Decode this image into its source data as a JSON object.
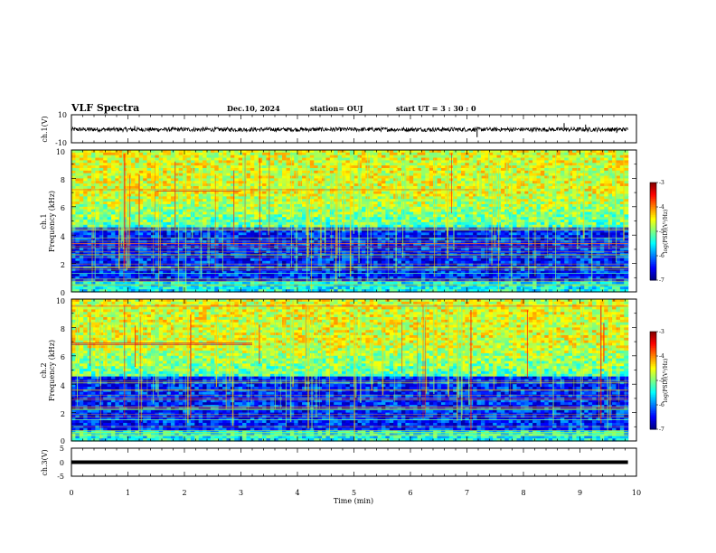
{
  "header": {
    "title": "VLF Spectra",
    "date": "Dec.10, 2024",
    "station": "station= OUJ",
    "start_ut": "start  UT =   3 : 30 : 0"
  },
  "chart_data": [
    {
      "type": "line",
      "title": "VLF Spectra",
      "ylabel": "ch.1(V)",
      "ylim": [
        -10,
        10
      ],
      "yticks": [
        "10",
        "-10"
      ],
      "x_range_min": [
        0,
        10
      ],
      "data_end_min": 9.85,
      "baseline_V": -0.5,
      "noise_amplitude_V": 1.5
    },
    {
      "type": "heatmap",
      "ylabel_line1": "ch.1",
      "ylabel_line2": "Frequency  (kHz)",
      "ylim": [
        0,
        10
      ],
      "yticks": [
        "0",
        "2",
        "4",
        "6",
        "8",
        "10"
      ],
      "colorbar_label": "log(PSD)(V²/Hz)",
      "colorbar_ticks": [
        "-3",
        "-4",
        "-5",
        "-6",
        "-7"
      ],
      "colorbar_range": [
        -7,
        -3
      ]
    },
    {
      "type": "heatmap",
      "ylabel_line1": "ch.2",
      "ylabel_line2": "Frequency  (kHz)",
      "ylim": [
        0,
        10
      ],
      "yticks": [
        "0",
        "2",
        "4",
        "6",
        "8",
        "10"
      ],
      "colorbar_label": "log(PSD)(V²/Hz)",
      "colorbar_ticks": [
        "-3",
        "-4",
        "-5",
        "-6",
        "-7"
      ],
      "colorbar_range": [
        -7,
        -3
      ]
    },
    {
      "type": "line",
      "ylabel": "ch.3(V)",
      "ylim": [
        -5,
        5
      ],
      "yticks": [
        "5",
        "0",
        "-5"
      ],
      "level_V": 0,
      "xlabel": "Time  (min)",
      "xticks": [
        "0",
        "1",
        "2",
        "3",
        "4",
        "5",
        "6",
        "7",
        "8",
        "9",
        "10"
      ],
      "data_end_min": 9.85
    }
  ]
}
